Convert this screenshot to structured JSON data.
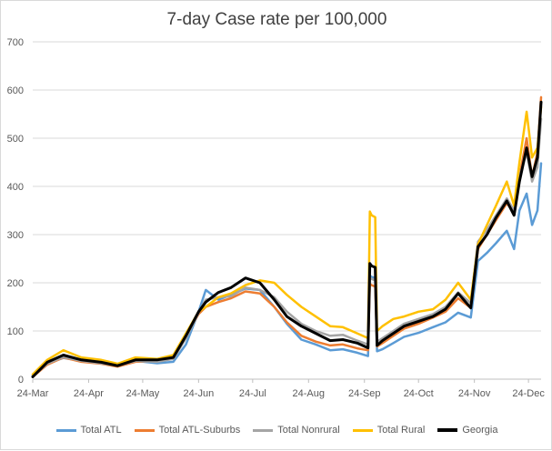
{
  "chart_data": {
    "type": "line",
    "title": "7-day Case rate per 100,000",
    "xlabel": "",
    "ylabel": "",
    "ylim": [
      0,
      700
    ],
    "yticks": [
      0,
      100,
      200,
      300,
      400,
      500,
      600,
      700
    ],
    "x_range": [
      "2020-03-24",
      "2020-12-31"
    ],
    "x_ticks": [
      {
        "date": "2020-03-24",
        "label": "24-Mar"
      },
      {
        "date": "2020-04-24",
        "label": "24-Apr"
      },
      {
        "date": "2020-05-24",
        "label": "24-May"
      },
      {
        "date": "2020-06-24",
        "label": "24-Jun"
      },
      {
        "date": "2020-07-24",
        "label": "24-Jul"
      },
      {
        "date": "2020-08-24",
        "label": "24-Aug"
      },
      {
        "date": "2020-09-24",
        "label": "24-Sep"
      },
      {
        "date": "2020-10-24",
        "label": "24-Oct"
      },
      {
        "date": "2020-11-24",
        "label": "24-Nov"
      },
      {
        "date": "2020-12-24",
        "label": "24-Dec"
      }
    ],
    "grid": true,
    "legend_position": "bottom",
    "series": [
      {
        "name": "Total ATL",
        "color": "#5b9bd5",
        "width": 2.5,
        "points": [
          [
            "2020-03-24",
            8
          ],
          [
            "2020-04-01",
            33
          ],
          [
            "2020-04-10",
            44
          ],
          [
            "2020-04-20",
            38
          ],
          [
            "2020-05-01",
            34
          ],
          [
            "2020-05-10",
            27
          ],
          [
            "2020-05-20",
            38
          ],
          [
            "2020-06-01",
            33
          ],
          [
            "2020-06-10",
            36
          ],
          [
            "2020-06-17",
            72
          ],
          [
            "2020-06-24",
            140
          ],
          [
            "2020-06-28",
            185
          ],
          [
            "2020-07-05",
            165
          ],
          [
            "2020-07-12",
            175
          ],
          [
            "2020-07-20",
            188
          ],
          [
            "2020-07-28",
            185
          ],
          [
            "2020-08-05",
            150
          ],
          [
            "2020-08-12",
            115
          ],
          [
            "2020-08-20",
            82
          ],
          [
            "2020-08-28",
            72
          ],
          [
            "2020-09-05",
            60
          ],
          [
            "2020-09-12",
            62
          ],
          [
            "2020-09-20",
            55
          ],
          [
            "2020-09-26",
            48
          ],
          [
            "2020-09-27",
            215
          ],
          [
            "2020-09-28",
            212
          ],
          [
            "2020-09-30",
            210
          ],
          [
            "2020-10-01",
            58
          ],
          [
            "2020-10-04",
            62
          ],
          [
            "2020-10-10",
            75
          ],
          [
            "2020-10-16",
            88
          ],
          [
            "2020-10-24",
            96
          ],
          [
            "2020-11-01",
            108
          ],
          [
            "2020-11-08",
            118
          ],
          [
            "2020-11-15",
            138
          ],
          [
            "2020-11-22",
            128
          ],
          [
            "2020-11-26",
            245
          ],
          [
            "2020-12-01",
            262
          ],
          [
            "2020-12-06",
            282
          ],
          [
            "2020-12-12",
            308
          ],
          [
            "2020-12-16",
            270
          ],
          [
            "2020-12-19",
            350
          ],
          [
            "2020-12-23",
            385
          ],
          [
            "2020-12-26",
            320
          ],
          [
            "2020-12-29",
            350
          ],
          [
            "2020-12-31",
            448
          ]
        ]
      },
      {
        "name": "Total ATL-Suburbs",
        "color": "#ed7d31",
        "width": 2.5,
        "points": [
          [
            "2020-03-24",
            5
          ],
          [
            "2020-04-01",
            30
          ],
          [
            "2020-04-10",
            45
          ],
          [
            "2020-04-20",
            36
          ],
          [
            "2020-05-01",
            32
          ],
          [
            "2020-05-10",
            26
          ],
          [
            "2020-05-20",
            36
          ],
          [
            "2020-06-01",
            38
          ],
          [
            "2020-06-10",
            45
          ],
          [
            "2020-06-17",
            90
          ],
          [
            "2020-06-24",
            135
          ],
          [
            "2020-06-28",
            150
          ],
          [
            "2020-07-05",
            160
          ],
          [
            "2020-07-12",
            168
          ],
          [
            "2020-07-20",
            182
          ],
          [
            "2020-07-28",
            178
          ],
          [
            "2020-08-05",
            150
          ],
          [
            "2020-08-12",
            118
          ],
          [
            "2020-08-20",
            90
          ],
          [
            "2020-08-28",
            78
          ],
          [
            "2020-09-05",
            70
          ],
          [
            "2020-09-12",
            72
          ],
          [
            "2020-09-20",
            64
          ],
          [
            "2020-09-26",
            60
          ],
          [
            "2020-09-27",
            198
          ],
          [
            "2020-09-28",
            195
          ],
          [
            "2020-09-30",
            192
          ],
          [
            "2020-10-01",
            68
          ],
          [
            "2020-10-04",
            75
          ],
          [
            "2020-10-10",
            90
          ],
          [
            "2020-10-16",
            105
          ],
          [
            "2020-10-24",
            115
          ],
          [
            "2020-11-01",
            128
          ],
          [
            "2020-11-08",
            140
          ],
          [
            "2020-11-15",
            168
          ],
          [
            "2020-11-22",
            148
          ],
          [
            "2020-11-26",
            270
          ],
          [
            "2020-12-01",
            300
          ],
          [
            "2020-12-06",
            330
          ],
          [
            "2020-12-12",
            365
          ],
          [
            "2020-12-16",
            345
          ],
          [
            "2020-12-19",
            420
          ],
          [
            "2020-12-23",
            500
          ],
          [
            "2020-12-26",
            420
          ],
          [
            "2020-12-29",
            470
          ],
          [
            "2020-12-31",
            585
          ]
        ]
      },
      {
        "name": "Total Nonrural",
        "color": "#a5a5a5",
        "width": 2.5,
        "points": [
          [
            "2020-03-24",
            6
          ],
          [
            "2020-04-01",
            32
          ],
          [
            "2020-04-10",
            46
          ],
          [
            "2020-04-20",
            38
          ],
          [
            "2020-05-01",
            33
          ],
          [
            "2020-05-10",
            28
          ],
          [
            "2020-05-20",
            38
          ],
          [
            "2020-06-01",
            36
          ],
          [
            "2020-06-10",
            42
          ],
          [
            "2020-06-17",
            85
          ],
          [
            "2020-06-24",
            138
          ],
          [
            "2020-06-28",
            165
          ],
          [
            "2020-07-05",
            170
          ],
          [
            "2020-07-12",
            172
          ],
          [
            "2020-07-20",
            190
          ],
          [
            "2020-07-28",
            185
          ],
          [
            "2020-08-05",
            170
          ],
          [
            "2020-08-12",
            140
          ],
          [
            "2020-08-20",
            115
          ],
          [
            "2020-08-28",
            100
          ],
          [
            "2020-09-05",
            90
          ],
          [
            "2020-09-12",
            92
          ],
          [
            "2020-09-20",
            80
          ],
          [
            "2020-09-26",
            72
          ],
          [
            "2020-09-27",
            210
          ],
          [
            "2020-09-28",
            208
          ],
          [
            "2020-09-30",
            205
          ],
          [
            "2020-10-01",
            78
          ],
          [
            "2020-10-04",
            85
          ],
          [
            "2020-10-10",
            100
          ],
          [
            "2020-10-16",
            115
          ],
          [
            "2020-10-24",
            125
          ],
          [
            "2020-11-01",
            135
          ],
          [
            "2020-11-08",
            150
          ],
          [
            "2020-11-15",
            180
          ],
          [
            "2020-11-22",
            158
          ],
          [
            "2020-11-26",
            285
          ],
          [
            "2020-12-01",
            310
          ],
          [
            "2020-12-06",
            340
          ],
          [
            "2020-12-12",
            375
          ],
          [
            "2020-12-16",
            350
          ],
          [
            "2020-12-19",
            420
          ],
          [
            "2020-12-23",
            470
          ],
          [
            "2020-12-26",
            410
          ],
          [
            "2020-12-29",
            440
          ],
          [
            "2020-12-31",
            540
          ]
        ]
      },
      {
        "name": "Total Rural",
        "color": "#ffc000",
        "width": 2.5,
        "points": [
          [
            "2020-03-24",
            10
          ],
          [
            "2020-04-01",
            40
          ],
          [
            "2020-04-10",
            60
          ],
          [
            "2020-04-20",
            45
          ],
          [
            "2020-05-01",
            40
          ],
          [
            "2020-05-10",
            32
          ],
          [
            "2020-05-20",
            45
          ],
          [
            "2020-06-01",
            42
          ],
          [
            "2020-06-10",
            50
          ],
          [
            "2020-06-17",
            95
          ],
          [
            "2020-06-24",
            140
          ],
          [
            "2020-06-28",
            150
          ],
          [
            "2020-07-05",
            170
          ],
          [
            "2020-07-12",
            178
          ],
          [
            "2020-07-20",
            195
          ],
          [
            "2020-07-28",
            205
          ],
          [
            "2020-08-05",
            200
          ],
          [
            "2020-08-12",
            175
          ],
          [
            "2020-08-20",
            150
          ],
          [
            "2020-08-28",
            130
          ],
          [
            "2020-09-05",
            110
          ],
          [
            "2020-09-12",
            108
          ],
          [
            "2020-09-20",
            95
          ],
          [
            "2020-09-26",
            85
          ],
          [
            "2020-09-27",
            348
          ],
          [
            "2020-09-28",
            340
          ],
          [
            "2020-09-30",
            336
          ],
          [
            "2020-10-01",
            100
          ],
          [
            "2020-10-04",
            110
          ],
          [
            "2020-10-10",
            125
          ],
          [
            "2020-10-16",
            130
          ],
          [
            "2020-10-24",
            140
          ],
          [
            "2020-11-01",
            145
          ],
          [
            "2020-11-08",
            165
          ],
          [
            "2020-11-15",
            200
          ],
          [
            "2020-11-22",
            165
          ],
          [
            "2020-11-26",
            280
          ],
          [
            "2020-12-01",
            320
          ],
          [
            "2020-12-06",
            360
          ],
          [
            "2020-12-12",
            410
          ],
          [
            "2020-12-16",
            360
          ],
          [
            "2020-12-19",
            450
          ],
          [
            "2020-12-23",
            555
          ],
          [
            "2020-12-26",
            460
          ],
          [
            "2020-12-29",
            480
          ],
          [
            "2020-12-31",
            565
          ]
        ]
      },
      {
        "name": "Georgia",
        "color": "#000000",
        "width": 3,
        "points": [
          [
            "2020-03-24",
            5
          ],
          [
            "2020-04-01",
            35
          ],
          [
            "2020-04-10",
            50
          ],
          [
            "2020-04-20",
            40
          ],
          [
            "2020-05-01",
            35
          ],
          [
            "2020-05-10",
            28
          ],
          [
            "2020-05-20",
            40
          ],
          [
            "2020-06-01",
            40
          ],
          [
            "2020-06-10",
            45
          ],
          [
            "2020-06-17",
            90
          ],
          [
            "2020-06-24",
            140
          ],
          [
            "2020-06-28",
            160
          ],
          [
            "2020-07-05",
            180
          ],
          [
            "2020-07-12",
            190
          ],
          [
            "2020-07-20",
            210
          ],
          [
            "2020-07-28",
            200
          ],
          [
            "2020-08-05",
            165
          ],
          [
            "2020-08-12",
            130
          ],
          [
            "2020-08-20",
            110
          ],
          [
            "2020-08-28",
            95
          ],
          [
            "2020-09-05",
            80
          ],
          [
            "2020-09-12",
            82
          ],
          [
            "2020-09-20",
            75
          ],
          [
            "2020-09-26",
            65
          ],
          [
            "2020-09-27",
            240
          ],
          [
            "2020-09-28",
            235
          ],
          [
            "2020-09-30",
            232
          ],
          [
            "2020-10-01",
            70
          ],
          [
            "2020-10-04",
            80
          ],
          [
            "2020-10-10",
            95
          ],
          [
            "2020-10-16",
            110
          ],
          [
            "2020-10-24",
            120
          ],
          [
            "2020-11-01",
            130
          ],
          [
            "2020-11-08",
            145
          ],
          [
            "2020-11-15",
            178
          ],
          [
            "2020-11-22",
            148
          ],
          [
            "2020-11-26",
            275
          ],
          [
            "2020-12-01",
            300
          ],
          [
            "2020-12-06",
            335
          ],
          [
            "2020-12-12",
            370
          ],
          [
            "2020-12-16",
            340
          ],
          [
            "2020-12-19",
            410
          ],
          [
            "2020-12-23",
            480
          ],
          [
            "2020-12-26",
            420
          ],
          [
            "2020-12-29",
            460
          ],
          [
            "2020-12-31",
            575
          ]
        ]
      }
    ]
  }
}
